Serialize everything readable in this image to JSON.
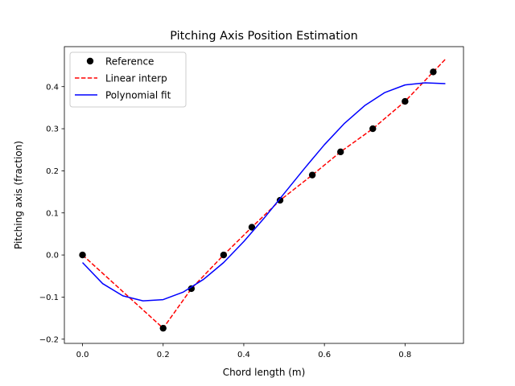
{
  "chart_data": {
    "type": "line",
    "title": "Pitching Axis Position Estimation",
    "xlabel": "Chord length (m)",
    "ylabel": "Pitching axis (fraction)",
    "xlim": [
      -0.045,
      0.945
    ],
    "ylim": [
      -0.21,
      0.495
    ],
    "xticks": [
      0.0,
      0.2,
      0.4,
      0.6,
      0.8
    ],
    "xtick_labels": [
      "0.0",
      "0.2",
      "0.4",
      "0.6",
      "0.8"
    ],
    "yticks": [
      -0.2,
      -0.1,
      0.0,
      0.1,
      0.2,
      0.3,
      0.4
    ],
    "ytick_labels": [
      "−0.2",
      "−0.1",
      "0.0",
      "0.1",
      "0.2",
      "0.3",
      "0.4"
    ],
    "grid": false,
    "legend_position": "upper-left",
    "series": [
      {
        "name": "Reference",
        "style": "markers",
        "color": "#000000",
        "edge_color": "#000000",
        "x": [
          0.0,
          0.2,
          0.27,
          0.35,
          0.42,
          0.49,
          0.57,
          0.64,
          0.72,
          0.8,
          0.87
        ],
        "y": [
          0.0,
          -0.174,
          -0.08,
          0.0,
          0.066,
          0.13,
          0.19,
          0.245,
          0.3,
          0.365,
          0.435
        ]
      },
      {
        "name": "Linear interp",
        "style": "dashed-line",
        "color": "#ff0000",
        "x": [
          0.0,
          0.2,
          0.27,
          0.35,
          0.42,
          0.49,
          0.57,
          0.64,
          0.72,
          0.8,
          0.87,
          0.9
        ],
        "y": [
          0.0,
          -0.174,
          -0.08,
          0.0,
          0.066,
          0.13,
          0.19,
          0.245,
          0.3,
          0.365,
          0.435,
          0.465
        ]
      },
      {
        "name": "Polynomial fit",
        "style": "solid-line",
        "color": "#0000ff",
        "x": [
          0.0,
          0.05,
          0.1,
          0.15,
          0.2,
          0.25,
          0.3,
          0.35,
          0.4,
          0.45,
          0.5,
          0.55,
          0.6,
          0.65,
          0.7,
          0.75,
          0.8,
          0.85,
          0.9
        ],
        "y": [
          -0.018,
          -0.068,
          -0.097,
          -0.109,
          -0.106,
          -0.088,
          -0.058,
          -0.018,
          0.032,
          0.087,
          0.146,
          0.205,
          0.262,
          0.313,
          0.355,
          0.386,
          0.404,
          0.409,
          0.407
        ]
      }
    ]
  }
}
